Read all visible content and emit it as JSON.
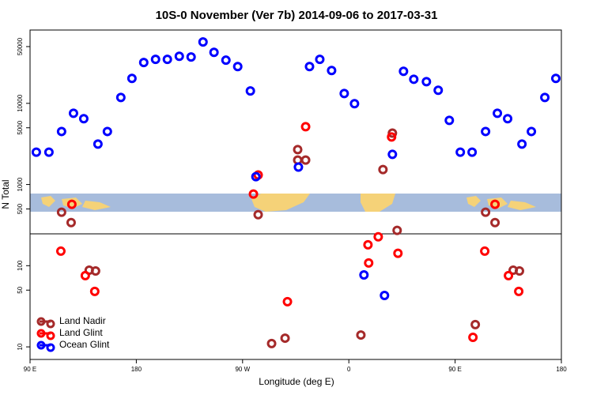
{
  "chart_data": {
    "type": "scatter",
    "title": "10S-0 November (Ver 7b)   2014-09-06 to 2017-03-31",
    "xlabel": "Longitude (deg E)",
    "ylabel": "N Total",
    "ylog": true,
    "legend": "bottom-left",
    "xlim": [
      90,
      540
    ],
    "ylim": [
      7,
      80000
    ],
    "xticks": [
      {
        "value": 90,
        "label": "90 E"
      },
      180,
      {
        "value": 270,
        "label": "90 W"
      },
      {
        "value": 360,
        "label": "0"
      },
      {
        "value": 450,
        "label": "90 E"
      },
      {
        "value": 540,
        "label": "180"
      }
    ],
    "yticks": [
      10,
      50,
      100,
      500,
      1000,
      5000,
      10000,
      50000
    ],
    "series": [
      {
        "name": "Land Nadir",
        "color": "#a52a2a",
        "x": [
          116.7,
          124.8,
          140.1,
          145.5,
          283.2,
          316.7,
          316.7,
          323.4,
          388.9,
          396.9,
          400.9,
          294.6,
          306,
          370.2,
          467.1,
          475.8,
          483.8,
          499.2,
          504.5
        ],
        "values": [
          456,
          340,
          88,
          86,
          425,
          2690,
          2000,
          2000,
          1530,
          4300,
          272,
          11,
          12.8,
          14,
          18.8,
          456,
          340,
          88,
          86
        ]
      },
      {
        "name": "Land Glint",
        "color": "#ff0000",
        "x": [
          125.4,
          116.1,
          136.8,
          144.8,
          279.2,
          283.2,
          323.4,
          308,
          376.2,
          384.9,
          376.8,
          401.6,
          396.2,
          475.1,
          483.8,
          495.2,
          503.9,
          465.1
        ],
        "values": [
          570,
          151,
          75.5,
          48.2,
          764,
          1310,
          5150,
          36,
          181,
          227,
          108,
          142,
          3850,
          151,
          570,
          75.5,
          48.2,
          13.1
        ]
      },
      {
        "name": "Ocean Glint",
        "color": "#0000ff",
        "x": [
          95.3,
          106,
          116.7,
          126.8,
          135.5,
          147.5,
          155.5,
          166.9,
          176.3,
          186.3,
          196.3,
          206.3,
          216.4,
          226.4,
          236.5,
          245.8,
          255.9,
          265.9,
          276.6,
          281.3,
          317.3,
          326.7,
          335.4,
          345.4,
          356.1,
          364.8,
          396.9,
          406.3,
          415,
          425.7,
          435.7,
          445.1,
          454.4,
          464.4,
          475.8,
          485.8,
          494.5,
          506.6,
          514.6,
          526,
          535.3,
          372.8,
          390.2
        ],
        "values": [
          2500,
          2500,
          4500,
          7550,
          6460,
          3150,
          4500,
          11800,
          20300,
          31800,
          34800,
          34800,
          38000,
          37200,
          57000,
          42500,
          34000,
          28400,
          14200,
          1250,
          1640,
          28400,
          34800,
          25400,
          13200,
          9900,
          2350,
          24800,
          19800,
          18500,
          14500,
          6170,
          2500,
          2500,
          4500,
          7550,
          6460,
          3150,
          4500,
          11800,
          20300,
          77,
          43
        ]
      }
    ]
  }
}
